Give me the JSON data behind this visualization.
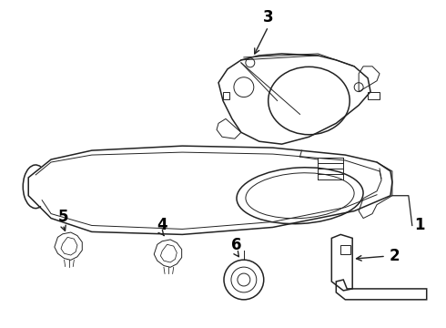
{
  "background_color": "#ffffff",
  "line_color": "#222222",
  "label_color": "#000000",
  "figsize": [
    4.9,
    3.6
  ],
  "dpi": 100,
  "lw_main": 1.1,
  "lw_thin": 0.7,
  "lw_thick": 1.5
}
